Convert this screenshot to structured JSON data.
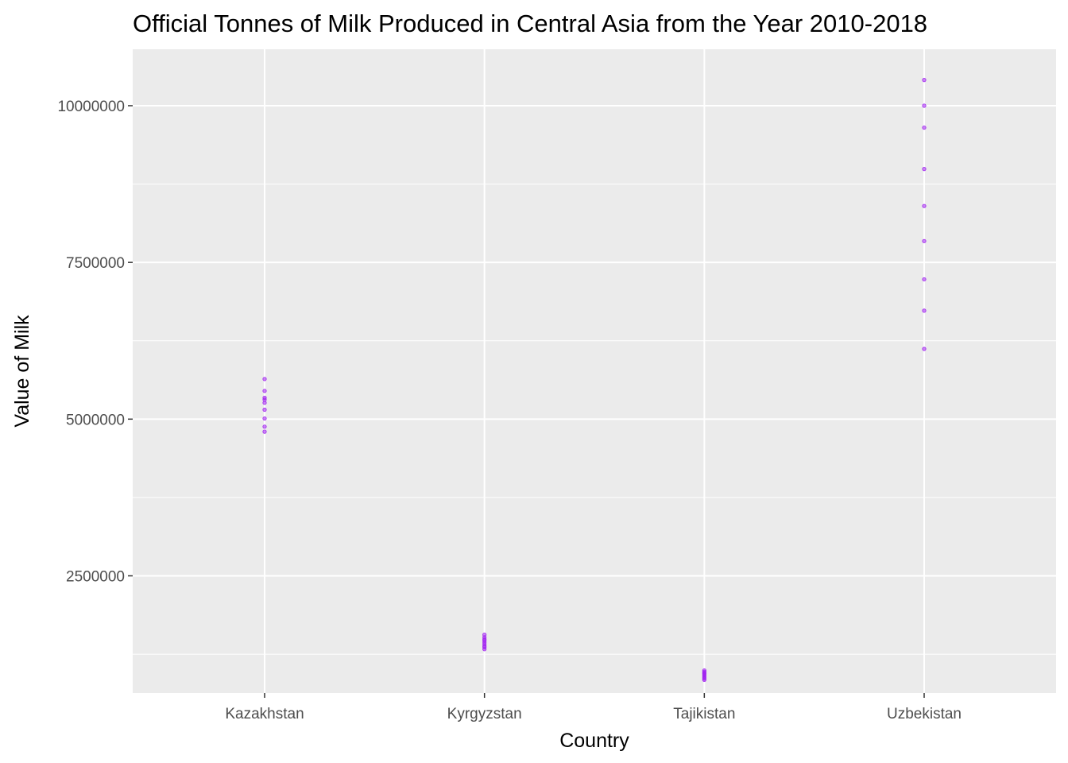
{
  "chart_data": {
    "type": "scatter",
    "title": "Official Tonnes of Milk Produced in Central Asia from the Year 2010-2018",
    "xlabel": "Country",
    "ylabel": "Value of Milk",
    "categories": [
      "Kazakhstan",
      "Kyrgyzstan",
      "Tajikistan",
      "Uzbekistan"
    ],
    "ylim": [
      630000,
      10900000
    ],
    "yticks": [
      2500000,
      5000000,
      7500000,
      10000000
    ],
    "ytick_labels": [
      "2500000",
      "5000000",
      "7500000",
      "10000000"
    ],
    "grid": true,
    "legend": "none",
    "point_color": "#a020f0",
    "panel_color": "#ebebeb",
    "grid_color": "#ffffff",
    "points": [
      {
        "x": "Kazakhstan",
        "y": 4800000
      },
      {
        "x": "Kazakhstan",
        "y": 4880000
      },
      {
        "x": "Kazakhstan",
        "y": 5010000
      },
      {
        "x": "Kazakhstan",
        "y": 5150000
      },
      {
        "x": "Kazakhstan",
        "y": 5260000
      },
      {
        "x": "Kazakhstan",
        "y": 5310000
      },
      {
        "x": "Kazakhstan",
        "y": 5340000
      },
      {
        "x": "Kazakhstan",
        "y": 5450000
      },
      {
        "x": "Kazakhstan",
        "y": 5640000
      },
      {
        "x": "Kyrgyzstan",
        "y": 1330000
      },
      {
        "x": "Kyrgyzstan",
        "y": 1360000
      },
      {
        "x": "Kyrgyzstan",
        "y": 1380000
      },
      {
        "x": "Kyrgyzstan",
        "y": 1410000
      },
      {
        "x": "Kyrgyzstan",
        "y": 1440000
      },
      {
        "x": "Kyrgyzstan",
        "y": 1470000
      },
      {
        "x": "Kyrgyzstan",
        "y": 1490000
      },
      {
        "x": "Kyrgyzstan",
        "y": 1520000
      },
      {
        "x": "Kyrgyzstan",
        "y": 1560000
      },
      {
        "x": "Tajikistan",
        "y": 840000
      },
      {
        "x": "Tajikistan",
        "y": 860000
      },
      {
        "x": "Tajikistan",
        "y": 880000
      },
      {
        "x": "Tajikistan",
        "y": 900000
      },
      {
        "x": "Tajikistan",
        "y": 920000
      },
      {
        "x": "Tajikistan",
        "y": 940000
      },
      {
        "x": "Tajikistan",
        "y": 950000
      },
      {
        "x": "Tajikistan",
        "y": 970000
      },
      {
        "x": "Tajikistan",
        "y": 990000
      },
      {
        "x": "Uzbekistan",
        "y": 6120000
      },
      {
        "x": "Uzbekistan",
        "y": 6730000
      },
      {
        "x": "Uzbekistan",
        "y": 7230000
      },
      {
        "x": "Uzbekistan",
        "y": 7840000
      },
      {
        "x": "Uzbekistan",
        "y": 8400000
      },
      {
        "x": "Uzbekistan",
        "y": 8990000
      },
      {
        "x": "Uzbekistan",
        "y": 9650000
      },
      {
        "x": "Uzbekistan",
        "y": 10000000
      },
      {
        "x": "Uzbekistan",
        "y": 10410000
      }
    ]
  }
}
